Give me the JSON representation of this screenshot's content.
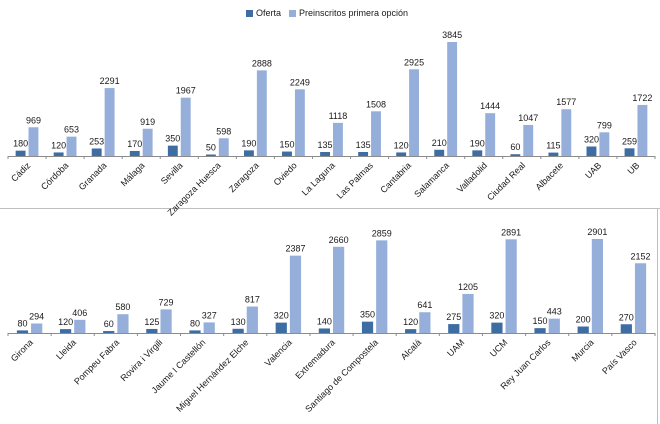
{
  "legend": {
    "oferta_label": "Oferta",
    "preinscritos_label": "Preinscritos primera opción"
  },
  "colors": {
    "oferta": "#3D6DA3",
    "preinscritos": "#95AFDA",
    "axis": "#8c8c8c",
    "text": "#1a1a1a"
  },
  "chart_data": [
    {
      "type": "bar",
      "categories": [
        "Cádiz",
        "Córdoba",
        "Granada",
        "Málaga",
        "Sevilla",
        "Zaragoza Huesca",
        "Zaragoza",
        "Oviedo",
        "La Laguna",
        "Las Palmas",
        "Cantabria",
        "Salamanca",
        "Valladolid",
        "Ciudad Real",
        "Albacete",
        "UAB",
        "UB"
      ],
      "series": [
        {
          "name": "Oferta",
          "values": [
            180,
            120,
            253,
            170,
            350,
            50,
            190,
            150,
            135,
            135,
            120,
            210,
            190,
            60,
            115,
            320,
            259
          ]
        },
        {
          "name": "Preinscritos primera opción",
          "values": [
            969,
            653,
            2291,
            919,
            1967,
            598,
            2888,
            2249,
            1118,
            1508,
            2925,
            3845,
            1444,
            1047,
            1577,
            799,
            1722
          ]
        }
      ]
    },
    {
      "type": "bar",
      "categories": [
        "Girona",
        "Lleida",
        "Pompeu Fabra",
        "Rovira i Virgili",
        "Jaume I Castellón",
        "Miguel Hernández Elche",
        "Valencia",
        "Extremadura",
        "Santiago de Compostela",
        "Alcalá",
        "UAM",
        "UCM",
        "Rey Juan Carlos",
        "Murcia",
        "País Vasco"
      ],
      "series": [
        {
          "name": "Oferta",
          "values": [
            80,
            120,
            60,
            125,
            80,
            130,
            320,
            140,
            350,
            120,
            275,
            320,
            150,
            200,
            270
          ]
        },
        {
          "name": "Preinscritos primera opción",
          "values": [
            294,
            406,
            580,
            729,
            327,
            817,
            2387,
            2660,
            2859,
            641,
            1205,
            2891,
            443,
            2901,
            2152
          ]
        }
      ]
    }
  ]
}
